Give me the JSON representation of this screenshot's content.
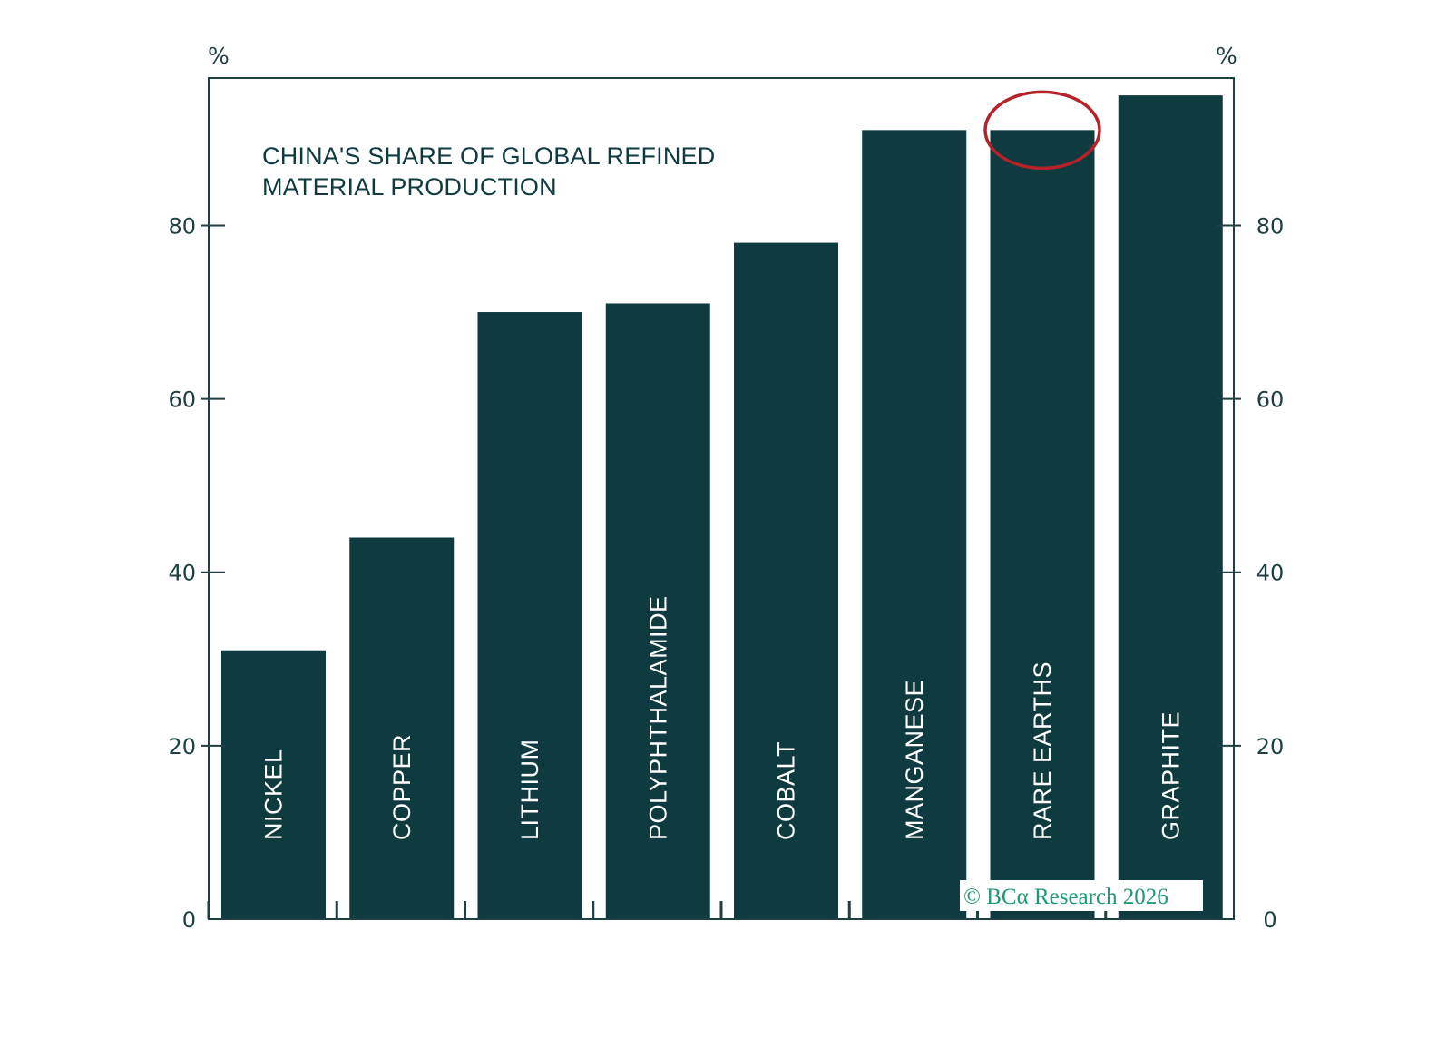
{
  "chart_data": {
    "type": "bar",
    "title": "CHINA'S SHARE OF GLOBAL REFINED MATERIAL PRODUCTION",
    "title_lines": [
      "CHINA'S SHARE OF GLOBAL REFINED",
      "MATERIAL PRODUCTION"
    ],
    "categories": [
      "NICKEL",
      "COPPER",
      "LITHIUM",
      "POLYPHTHALAMIDE",
      "COBALT",
      "MANGANESE",
      "RARE EARTHS",
      "GRAPHITE"
    ],
    "values": [
      31,
      44,
      70,
      71,
      78,
      91,
      91,
      95
    ],
    "ylim": [
      0,
      97
    ],
    "yticks": [
      0,
      20,
      40,
      60,
      80
    ],
    "yticks_labels": [
      "0",
      "20",
      "40",
      "60",
      "80"
    ],
    "left_unit": "%",
    "right_unit": "%",
    "highlighted_category": "RARE EARTHS",
    "grid": false,
    "colors": {
      "bar": "#0f3a40",
      "axis": "#1f3f43",
      "highlight": "#b5222a",
      "source": "#1f9a6e"
    }
  },
  "source": "© BCα Research 2026"
}
